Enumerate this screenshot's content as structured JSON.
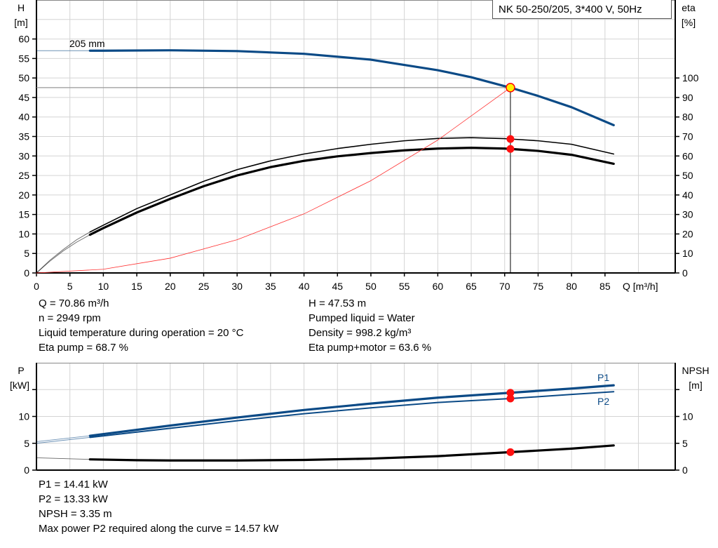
{
  "chart_data": [
    {
      "type": "line",
      "title": "NK 50-250/205, 3*400 V, 50Hz",
      "xlabel": "Q [m³/h]",
      "ylabel": [
        "H",
        "[m]"
      ],
      "y2label": [
        "eta",
        "[%]"
      ],
      "xlim": [
        0,
        95.5
      ],
      "ylim": [
        0,
        70
      ],
      "y2lim": [
        0,
        140
      ],
      "x_ticks": [
        0,
        5,
        10,
        15,
        20,
        25,
        30,
        35,
        40,
        45,
        50,
        55,
        60,
        65,
        70,
        75,
        80,
        85
      ],
      "y_ticks": [
        0,
        5,
        10,
        15,
        20,
        25,
        30,
        35,
        40,
        45,
        50,
        55,
        60
      ],
      "y2_ticks": [
        0,
        10,
        20,
        30,
        40,
        50,
        60,
        70,
        80,
        90,
        100
      ],
      "grid": true,
      "series": [
        {
          "name": "205 mm",
          "axis": "left",
          "color": "#0b4a86",
          "extension": {
            "x": [
              0,
              8
            ],
            "y": [
              57,
              57
            ]
          },
          "x": [
            8,
            10,
            20,
            30,
            40,
            50,
            60,
            65,
            70,
            70.86,
            75,
            80,
            86.3
          ],
          "y": [
            57,
            57,
            57.1,
            56.9,
            56.2,
            54.7,
            52,
            50.2,
            47.9,
            47.53,
            45.4,
            42.5,
            37.9
          ]
        },
        {
          "axis": "right",
          "color": "#000000",
          "width": "thin",
          "extension": {
            "x": [
              0,
              2,
              4,
              6,
              8
            ],
            "y": [
              0,
              6.5,
              12,
              17,
              21
            ]
          },
          "x": [
            8,
            10,
            15,
            20,
            25,
            30,
            35,
            40,
            45,
            50,
            55,
            60,
            65,
            70,
            70.86,
            75,
            80,
            86.3
          ],
          "y": [
            21,
            24.5,
            33,
            40,
            47,
            53,
            57.5,
            61,
            63.8,
            66,
            67.8,
            69,
            69.4,
            68.9,
            68.7,
            67.8,
            66,
            61
          ]
        },
        {
          "axis": "right",
          "color": "#000000",
          "width": "thick",
          "extension": {
            "x": [
              0,
              2,
              4,
              6,
              8
            ],
            "y": [
              0,
              6,
              11.3,
              15.8,
              19.6
            ]
          },
          "x": [
            8,
            10,
            15,
            20,
            25,
            30,
            35,
            40,
            45,
            50,
            55,
            60,
            65,
            70,
            70.86,
            75,
            80,
            86.3
          ],
          "y": [
            19.6,
            23,
            31,
            38,
            44.5,
            50,
            54.3,
            57.5,
            59.8,
            61.5,
            62.9,
            63.8,
            64.2,
            63.8,
            63.6,
            62.6,
            60.6,
            56
          ]
        },
        {
          "axis": "left",
          "color": "#ff3030",
          "width": "hair",
          "x": [
            0,
            10,
            20,
            30,
            40,
            50,
            60,
            70.86
          ],
          "y": [
            0,
            0.95,
            3.79,
            8.52,
            15.15,
            23.67,
            34.08,
            47.53
          ]
        }
      ],
      "operating_point": {
        "Q": 70.86,
        "H": 47.53,
        "eta_pump": 68.7,
        "eta_pump_motor": 63.6,
        "fill": "#ffee00",
        "stroke": "#ff0000"
      },
      "marker_color": "#ff1010"
    },
    {
      "type": "line",
      "ylabel": [
        "P",
        "[kW]"
      ],
      "y2label": [
        "NPSH",
        "[m]"
      ],
      "xlim": [
        0,
        95.5
      ],
      "ylim": [
        0,
        20
      ],
      "x_grid": [
        0,
        5,
        10,
        15,
        20,
        25,
        30,
        35,
        40,
        45,
        50,
        55,
        60,
        65,
        70,
        75,
        80,
        85,
        90
      ],
      "y_ticks": [
        0,
        5,
        10
      ],
      "y2_ticks": [
        0,
        5,
        10
      ],
      "unlabeled_tick": 15,
      "grid": true,
      "series": [
        {
          "name": "P1",
          "axis": "left",
          "color": "#0b4a86",
          "width": "thick",
          "extension": {
            "x": [
              0,
              8
            ],
            "y": [
              5.3,
              6.4
            ]
          },
          "x": [
            8,
            20,
            30,
            40,
            50,
            60,
            70.86,
            80,
            86.3
          ],
          "y": [
            6.4,
            8.3,
            9.8,
            11.2,
            12.4,
            13.5,
            14.41,
            15.2,
            15.8
          ]
        },
        {
          "name": "P2",
          "axis": "left",
          "color": "#0b4a86",
          "width": "mid",
          "extension": {
            "x": [
              0,
              8
            ],
            "y": [
              5.0,
              6.1
            ]
          },
          "x": [
            8,
            20,
            30,
            40,
            50,
            60,
            70.86,
            80,
            86.3
          ],
          "y": [
            6.1,
            7.8,
            9.2,
            10.5,
            11.6,
            12.6,
            13.33,
            14.1,
            14.6
          ]
        },
        {
          "axis": "right",
          "color": "#000000",
          "width": "thick",
          "extension": {
            "x": [
              0,
              8
            ],
            "y": [
              2.3,
              2.0
            ]
          },
          "x": [
            8,
            15,
            20,
            30,
            40,
            50,
            60,
            70.86,
            80,
            86.3
          ],
          "y": [
            2.0,
            1.85,
            1.8,
            1.8,
            1.9,
            2.15,
            2.6,
            3.35,
            4.0,
            4.6
          ]
        }
      ],
      "operating_point": {
        "Q": 70.86,
        "P1": 14.41,
        "P2": 13.33,
        "NPSH": 3.35
      },
      "marker_color": "#ff1010"
    }
  ],
  "info_top": {
    "left": [
      "Q = 70.86 m³/h",
      "n = 2949 rpm",
      "Liquid temperature during operation = 20 °C",
      "Eta pump = 68.7 %"
    ],
    "right": [
      "H = 47.53 m",
      "Pumped liquid = Water",
      "Density = 998.2 kg/m³",
      "Eta pump+motor = 63.6 %"
    ]
  },
  "info_bottom": [
    "P1 = 14.41 kW",
    "P2 = 13.33 kW",
    "NPSH = 3.35 m",
    "Max power P2 required along the curve = 14.57 kW"
  ]
}
